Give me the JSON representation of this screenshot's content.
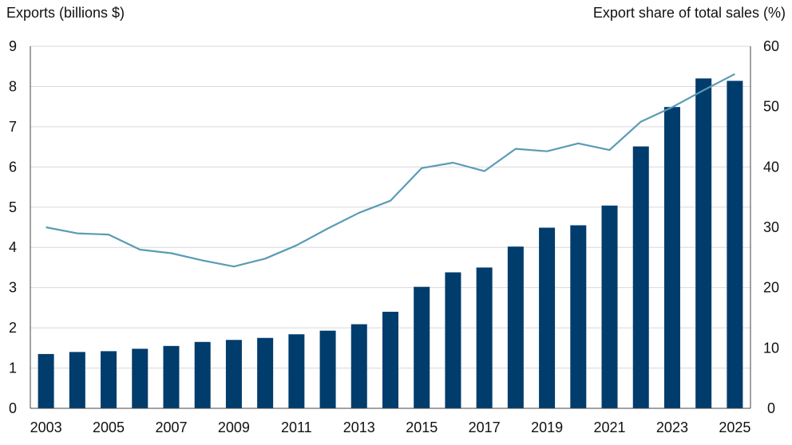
{
  "chart_data": {
    "type": "bar+line",
    "title": "",
    "left_axis_label": "Exports (billions $)",
    "right_axis_label": "Export share of total sales (%)",
    "x_tick_labels": [
      "2003",
      "2005",
      "2007",
      "2009",
      "2011",
      "2013",
      "2015",
      "2017",
      "2019",
      "2021",
      "2023",
      "2025"
    ],
    "years": [
      2003,
      2004,
      2005,
      2006,
      2007,
      2008,
      2009,
      2010,
      2011,
      2012,
      2013,
      2014,
      2015,
      2016,
      2017,
      2018,
      2019,
      2020,
      2021,
      2022,
      2023,
      2024,
      2025
    ],
    "bars": {
      "axis": "left",
      "color": "#003c6c",
      "values": [
        1.35,
        1.4,
        1.42,
        1.48,
        1.55,
        1.65,
        1.7,
        1.75,
        1.84,
        1.93,
        2.09,
        2.4,
        3.02,
        3.38,
        3.5,
        4.02,
        4.49,
        4.55,
        5.04,
        6.51,
        7.49,
        8.2,
        8.14
      ]
    },
    "line": {
      "axis": "right",
      "color": "#5b9bb6",
      "values": [
        30.0,
        29.0,
        28.8,
        26.3,
        25.7,
        24.5,
        23.5,
        24.8,
        27.0,
        29.8,
        32.4,
        34.4,
        39.8,
        40.7,
        39.3,
        43.0,
        42.6,
        43.9,
        42.8,
        47.5,
        49.9,
        52.7,
        55.4
      ]
    },
    "left_axis": {
      "min": 0,
      "max": 9,
      "ticks": [
        0,
        1,
        2,
        3,
        4,
        5,
        6,
        7,
        8,
        9
      ]
    },
    "right_axis": {
      "min": 0,
      "max": 60,
      "ticks": [
        0,
        10,
        20,
        30,
        40,
        50,
        60
      ]
    },
    "grid": true,
    "legend": "none"
  }
}
